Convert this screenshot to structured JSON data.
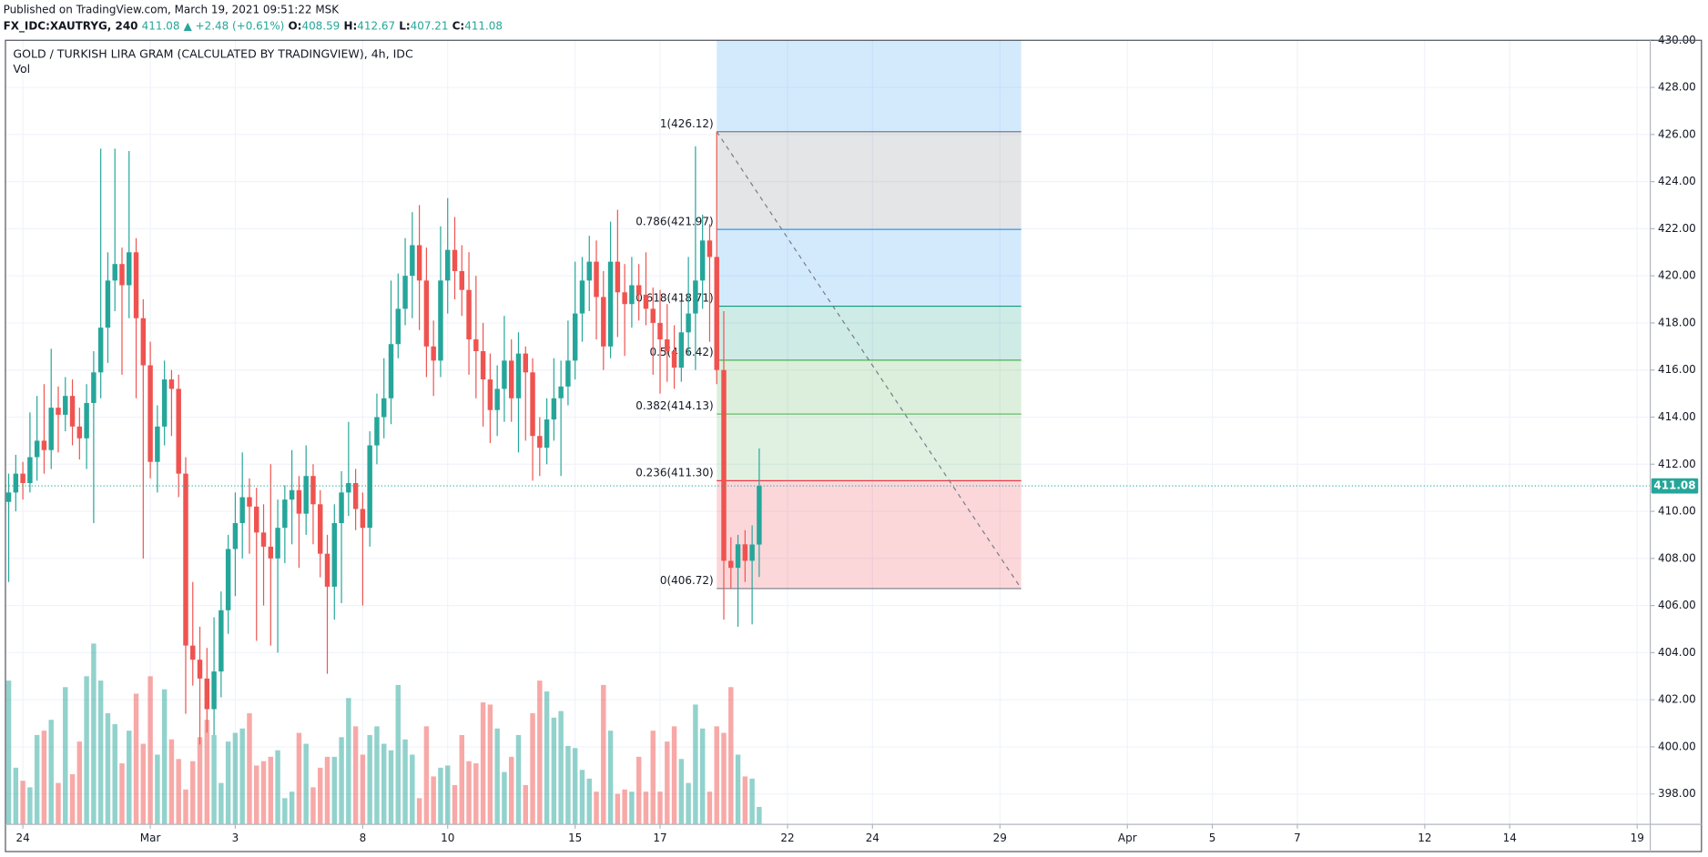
{
  "header": {
    "published": "Published on TradingView.com, March 19, 2021 09:51:22 MSK",
    "symbol": "FX_IDC:XAUTRYG, 240",
    "price": "411.08",
    "change": "▲ +2.48 (+0.61%)",
    "ohlc": [
      {
        "key": "O:",
        "value": "408.59"
      },
      {
        "key": "H:",
        "value": "412.67"
      },
      {
        "key": "L:",
        "value": "407.21"
      },
      {
        "key": "C:",
        "value": "411.08"
      }
    ]
  },
  "chart_data": {
    "type": "candlestick",
    "title": "GOLD / TURKISH LIRA GRAM (CALCULATED BY TRADINGVIEW), 4h, IDC",
    "subtitle": "Vol",
    "up_color": "#26a69a",
    "down_color": "#ef5350",
    "open": [
      410.4,
      410.8,
      411.6,
      411.2,
      412.3,
      413.0,
      412.6,
      414.4,
      414.1,
      414.9,
      413.6,
      413.1,
      414.6,
      415.9,
      417.8,
      419.8,
      420.5,
      419.6,
      421.0,
      418.2,
      416.2,
      412.1,
      413.6,
      415.6,
      415.2,
      411.6,
      404.3,
      403.7,
      402.9,
      401.6,
      403.2,
      405.8,
      408.4,
      409.5,
      410.6,
      410.2,
      409.1,
      408.5,
      408.0,
      409.3,
      410.5,
      410.9,
      409.9,
      411.5,
      410.3,
      408.2,
      406.8,
      409.5,
      410.8,
      411.2,
      410.1,
      409.3,
      412.8,
      414.0,
      414.8,
      417.1,
      418.6,
      420.0,
      421.3,
      419.8,
      417.0,
      416.4,
      419.8,
      421.1,
      420.2,
      419.4,
      417.3,
      416.8,
      415.6,
      414.3,
      415.2,
      416.4,
      414.8,
      416.7,
      415.9,
      413.2,
      412.7,
      413.9,
      414.8,
      415.3,
      416.4,
      418.4,
      419.8,
      420.6,
      419.1,
      417.0,
      420.6,
      419.3,
      418.8,
      419.6,
      419.2,
      418.6,
      418.0,
      417.3,
      416.8,
      416.1,
      417.6,
      418.4,
      419.8,
      421.5,
      420.8,
      416.0,
      407.9,
      407.6,
      408.6,
      407.9,
      408.59
    ],
    "high": [
      411.6,
      412.4,
      412.1,
      414.2,
      414.9,
      415.4,
      416.9,
      415.3,
      415.7,
      415.6,
      414.4,
      415.4,
      416.8,
      425.4,
      421.0,
      425.4,
      421.2,
      425.3,
      421.6,
      419.0,
      417.2,
      414.5,
      416.4,
      416.0,
      415.8,
      412.3,
      407.0,
      405.1,
      404.2,
      405.5,
      406.6,
      409.0,
      410.8,
      412.5,
      411.4,
      411.0,
      410.3,
      412.0,
      410.5,
      411.1,
      412.6,
      411.5,
      412.8,
      412.0,
      410.9,
      409.0,
      410.3,
      411.7,
      413.8,
      411.8,
      410.8,
      413.4,
      415.0,
      416.5,
      419.8,
      420.1,
      421.6,
      422.7,
      423.0,
      421.2,
      418.1,
      422.1,
      423.3,
      422.5,
      421.3,
      421.0,
      420.0,
      418.0,
      416.7,
      416.2,
      418.3,
      417.3,
      417.6,
      417.0,
      416.5,
      414.0,
      414.8,
      416.5,
      416.4,
      418.1,
      420.6,
      420.8,
      421.7,
      421.5,
      420.2,
      422.3,
      422.8,
      420.5,
      420.8,
      420.5,
      421.0,
      419.5,
      419.4,
      418.8,
      417.9,
      418.9,
      420.8,
      425.5,
      422.6,
      422.2,
      426.12,
      418.5,
      408.9,
      409.0,
      409.2,
      409.4,
      412.67
    ],
    "low": [
      407.0,
      410.0,
      410.5,
      410.8,
      411.3,
      411.6,
      411.8,
      412.5,
      413.4,
      412.8,
      412.2,
      411.8,
      409.5,
      414.8,
      416.3,
      418.5,
      415.8,
      418.2,
      414.8,
      408.0,
      411.4,
      410.8,
      412.8,
      413.2,
      410.6,
      401.4,
      402.6,
      400.1,
      400.6,
      400.5,
      402.1,
      404.8,
      406.4,
      408.0,
      408.2,
      404.5,
      406.0,
      404.3,
      404.0,
      407.8,
      408.6,
      407.6,
      409.0,
      408.6,
      407.2,
      403.1,
      405.4,
      406.1,
      409.8,
      409.2,
      406.0,
      408.5,
      412.0,
      413.1,
      413.7,
      416.5,
      417.9,
      418.2,
      417.7,
      415.7,
      414.9,
      415.7,
      418.4,
      419.0,
      418.3,
      415.8,
      414.8,
      413.6,
      412.9,
      413.2,
      413.8,
      413.8,
      412.5,
      413.0,
      411.3,
      411.5,
      412.0,
      413.0,
      411.5,
      414.5,
      415.6,
      417.2,
      418.5,
      417.3,
      416.0,
      416.5,
      417.4,
      416.6,
      417.8,
      418.1,
      417.9,
      415.8,
      415.0,
      415.5,
      415.2,
      415.5,
      416.6,
      416.0,
      418.6,
      417.2,
      415.4,
      405.4,
      406.72,
      405.1,
      407.0,
      405.2,
      407.21
    ],
    "close": [
      410.8,
      411.6,
      411.2,
      412.3,
      413.0,
      412.6,
      414.4,
      414.1,
      414.9,
      413.6,
      413.1,
      414.6,
      415.9,
      417.8,
      419.8,
      420.5,
      419.6,
      421.0,
      418.2,
      416.2,
      412.1,
      413.6,
      415.6,
      415.2,
      411.6,
      404.3,
      403.7,
      402.9,
      401.6,
      403.2,
      405.8,
      408.4,
      409.5,
      410.6,
      410.2,
      409.1,
      408.5,
      408.0,
      409.3,
      410.5,
      410.9,
      409.9,
      411.5,
      410.3,
      408.2,
      406.8,
      409.5,
      410.8,
      411.2,
      410.1,
      409.3,
      412.8,
      414.0,
      414.8,
      417.1,
      418.6,
      420.0,
      421.3,
      419.8,
      417.0,
      416.4,
      419.8,
      421.1,
      420.2,
      419.4,
      417.3,
      416.8,
      415.6,
      414.3,
      415.2,
      416.4,
      414.8,
      416.7,
      415.9,
      413.2,
      412.7,
      413.9,
      414.8,
      415.3,
      416.4,
      418.4,
      419.8,
      420.6,
      419.1,
      417.0,
      420.6,
      419.3,
      418.8,
      419.6,
      419.2,
      418.6,
      418.0,
      417.3,
      416.8,
      416.1,
      417.6,
      418.4,
      419.8,
      421.5,
      420.8,
      416.0,
      407.9,
      407.6,
      408.6,
      407.9,
      408.59,
      411.08
    ],
    "volume": [
      66,
      26,
      20,
      17,
      41,
      43,
      48,
      19,
      63,
      23,
      38,
      68,
      83,
      66,
      51,
      46,
      28,
      43,
      60,
      37,
      68,
      32,
      62,
      39,
      30,
      16,
      29,
      40,
      48,
      41,
      19,
      38,
      42,
      44,
      51,
      27,
      29,
      31,
      34,
      12,
      15,
      42,
      37,
      17,
      26,
      31,
      31,
      40,
      58,
      45,
      32,
      41,
      45,
      37,
      34,
      64,
      39,
      32,
      12,
      45,
      22,
      26,
      27,
      18,
      41,
      29,
      28,
      56,
      55,
      44,
      24,
      31,
      41,
      18,
      51,
      66,
      61,
      49,
      52,
      36,
      35,
      25,
      21,
      15,
      64,
      43,
      14,
      16,
      15,
      31,
      15,
      43,
      15,
      38,
      45,
      30,
      19,
      55,
      44,
      15,
      45,
      42,
      63,
      32,
      22,
      21,
      8
    ],
    "volume_lim": [
      0,
      100
    ],
    "ylim": [
      396.71,
      430
    ],
    "yticks": [
      {
        "value": 398,
        "label": "398.00"
      },
      {
        "value": 400,
        "label": "400.00"
      },
      {
        "value": 402,
        "label": "402.00"
      },
      {
        "value": 404,
        "label": "404.00"
      },
      {
        "value": 406,
        "label": "406.00"
      },
      {
        "value": 408,
        "label": "408.00"
      },
      {
        "value": 410,
        "label": "410.00"
      },
      {
        "value": 412,
        "label": "412.00"
      },
      {
        "value": 414,
        "label": "414.00"
      },
      {
        "value": 416,
        "label": "416.00"
      },
      {
        "value": 418,
        "label": "418.00"
      },
      {
        "value": 420,
        "label": "420.00"
      },
      {
        "value": 422,
        "label": "422.00"
      },
      {
        "value": 424,
        "label": "424.00"
      },
      {
        "value": 426,
        "label": "426.00"
      },
      {
        "value": 428,
        "label": "428.00"
      },
      {
        "value": 430,
        "label": "430.00"
      }
    ],
    "xlim": [
      -0.46,
      231.85
    ],
    "xticks": [
      {
        "value": 2,
        "label": "24"
      },
      {
        "value": 20,
        "label": "Mar"
      },
      {
        "value": 32,
        "label": "3"
      },
      {
        "value": 50,
        "label": "8"
      },
      {
        "value": 62,
        "label": "10"
      },
      {
        "value": 80,
        "label": "15"
      },
      {
        "value": 92,
        "label": "17"
      },
      {
        "value": 110,
        "label": "22"
      },
      {
        "value": 122,
        "label": "24"
      },
      {
        "value": 140,
        "label": "29"
      },
      {
        "value": 158,
        "label": "Apr"
      },
      {
        "value": 170,
        "label": "5"
      },
      {
        "value": 182,
        "label": "7"
      },
      {
        "value": 200,
        "label": "12"
      },
      {
        "value": 212,
        "label": "14"
      },
      {
        "value": 230,
        "label": "19"
      }
    ],
    "grid": true,
    "last_price": {
      "value": 411.08,
      "label": "411.08"
    },
    "fib": {
      "x_range": [
        100,
        143
      ],
      "levels": [
        {
          "label": "1(426.12)",
          "value": 426.12,
          "color": "#787b86"
        },
        {
          "label": "0.786(421.97)",
          "value": 421.97,
          "color": "#2196f3"
        },
        {
          "label": "0.618(418.71)",
          "value": 418.71,
          "color": "#089981"
        },
        {
          "label": "0.5(416.42)",
          "value": 416.42,
          "color": "#4caf50"
        },
        {
          "label": "0.382(414.13)",
          "value": 414.13,
          "color": "#66bb6a"
        },
        {
          "label": "0.236(411.30)",
          "value": 411.3,
          "color": "#f23645"
        },
        {
          "label": "0(406.72)",
          "value": 406.72,
          "color": "#787b86"
        }
      ]
    }
  }
}
